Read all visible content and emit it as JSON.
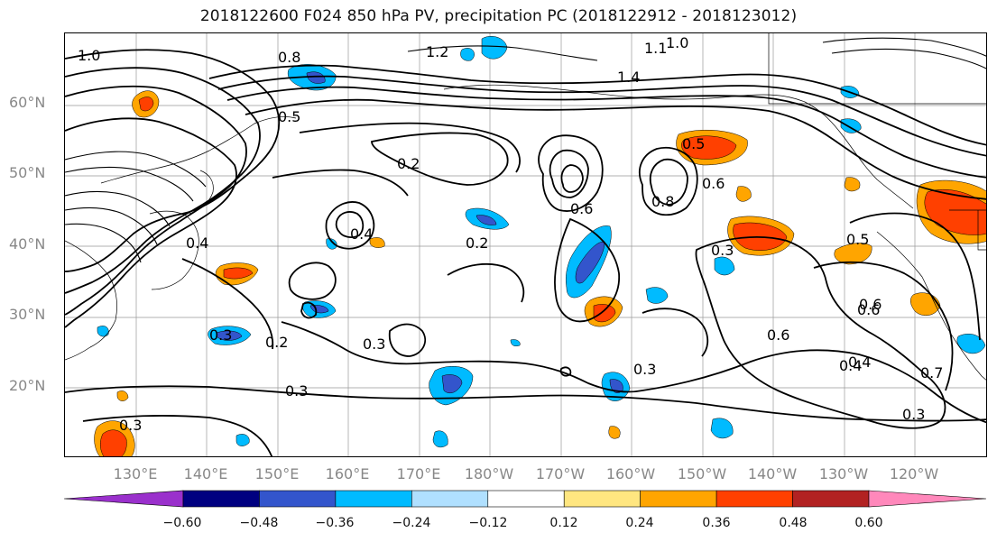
{
  "title": "2018122600 F024 850 hPa PV, precipitation PC (2018122912 - 2018123012)",
  "lat_labels": [
    "60°N",
    "50°N",
    "40°N",
    "30°N",
    "20°N"
  ],
  "lon_labels": [
    "130°E",
    "140°E",
    "150°E",
    "160°E",
    "170°E",
    "180°W",
    "170°W",
    "160°W",
    "150°W",
    "140°W",
    "130°W",
    "120°W"
  ],
  "contour_labels": [
    "1.0",
    "0.8",
    "1.2",
    "1.4",
    "1.0",
    "1.1",
    "0.5",
    "0.2",
    "0.6",
    "0.5",
    "0.6",
    "0.8",
    "0.4",
    "0.4",
    "0.2",
    "0.3",
    "0.5",
    "0.6",
    "0.6",
    "0.3",
    "0.2",
    "0.3",
    "0.3",
    "0.3",
    "0.4",
    "0.3",
    "0.6",
    "0.4",
    "0.3",
    "0.7"
  ],
  "colorbar": {
    "ticks": [
      "−0.60",
      "−0.48",
      "−0.36",
      "−0.24",
      "−0.12",
      "0.12",
      "0.24",
      "0.36",
      "0.48",
      "0.60"
    ],
    "colors": [
      "#9a30cc",
      "#000080",
      "#3355cc",
      "#00bbff",
      "#b0e0ff",
      "#ffffff",
      "#ffe680",
      "#ffa500",
      "#ff4000",
      "#b22222",
      "#ff88bb"
    ]
  },
  "legend_colors": {
    "contour": "#000000",
    "coastline": "#000000",
    "grid": "#999999",
    "label_text": "#888888"
  }
}
